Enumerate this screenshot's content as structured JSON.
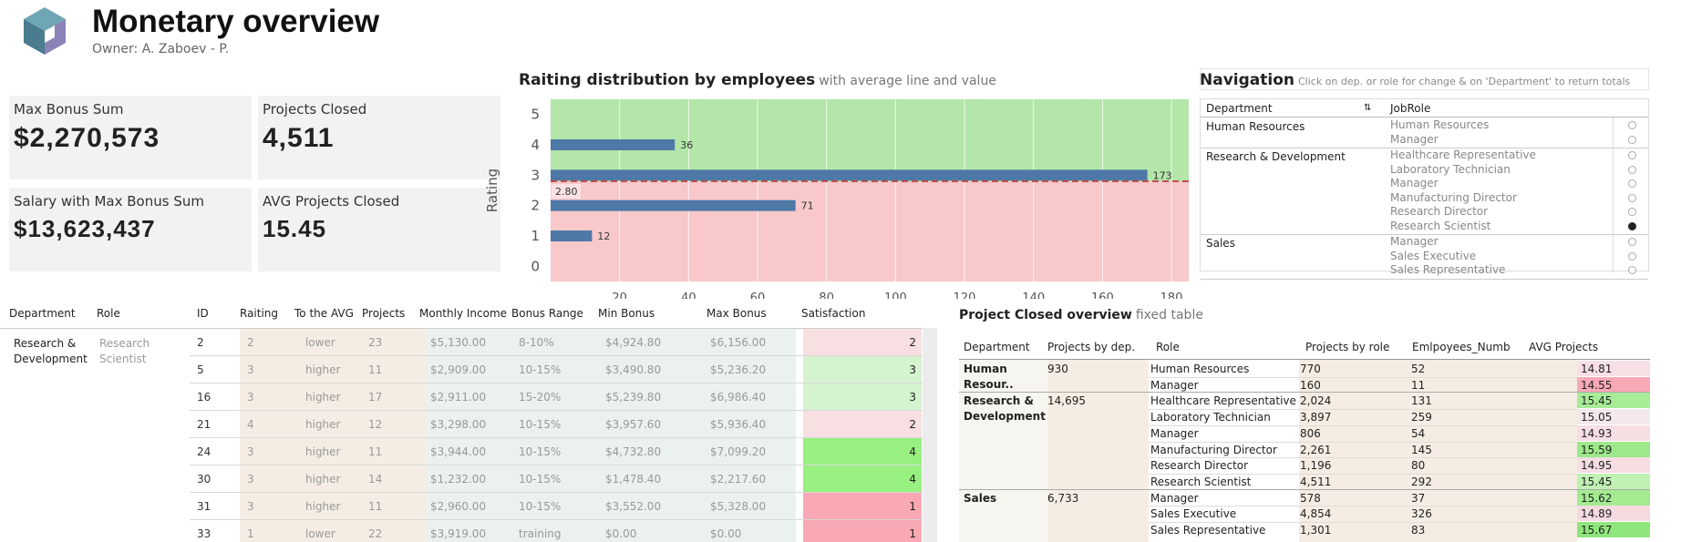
{
  "header": {
    "title": "Monetary overview",
    "owner": "Owner: A. Zaboev - P."
  },
  "kpis": [
    {
      "label": "Max Bonus Sum",
      "value": "$2,270,573"
    },
    {
      "label": "Projects Closed",
      "value": "4,511"
    },
    {
      "label": "Salary with Max Bonus Sum",
      "value": "$13,623,437"
    },
    {
      "label": "AVG Projects Closed",
      "value": "15.45"
    }
  ],
  "chart_title": "Raiting distribution by employees",
  "chart_subtitle": "with average line and value",
  "chart_data": {
    "type": "bar",
    "orientation": "horizontal",
    "categories": [
      "5",
      "4",
      "3",
      "2",
      "1",
      "0"
    ],
    "values": [
      null,
      36,
      173,
      71,
      12,
      null
    ],
    "ylabel": "Rating",
    "xlim": [
      0,
      185
    ],
    "xticks": [
      20,
      40,
      60,
      80,
      100,
      120,
      140,
      160,
      180
    ],
    "average_value": 2.8,
    "average_label": "2.80",
    "colors": {
      "bar": "#4e79a7",
      "above": "#b3e6a8",
      "below": "#f8c8cb",
      "avg_line": "#c0504d"
    },
    "grid": true
  },
  "navigation": {
    "title": "Navigation",
    "hint": "Click on dep. or role for change & on 'Department' to return totals",
    "col_department": "Department",
    "col_jobrole": "JobRole",
    "sort_icon": "az-sort-icon",
    "groups": [
      {
        "department": "Human Resources",
        "roles": [
          {
            "name": "Human Resources",
            "selected": false
          },
          {
            "name": "Manager",
            "selected": false
          }
        ]
      },
      {
        "department": "Research & Development",
        "roles": [
          {
            "name": "Healthcare Representative",
            "selected": false
          },
          {
            "name": "Laboratory Technician",
            "selected": false
          },
          {
            "name": "Manager",
            "selected": false
          },
          {
            "name": "Manufacturing Director",
            "selected": false
          },
          {
            "name": "Research Director",
            "selected": false
          },
          {
            "name": "Research Scientist",
            "selected": true
          }
        ]
      },
      {
        "department": "Sales",
        "roles": [
          {
            "name": "Manager",
            "selected": false
          },
          {
            "name": "Sales Executive",
            "selected": false
          },
          {
            "name": "Sales Representative",
            "selected": false
          }
        ]
      }
    ]
  },
  "employee_table": {
    "headers": [
      "Department",
      "Role",
      "ID",
      "Raiting",
      "To the AVG",
      "Projects",
      "Monthly Income",
      "Bonus Range",
      "Min Bonus",
      "Max Bonus",
      "Satisfaction"
    ],
    "department": "Research & Development",
    "role": "Research Scientist",
    "rows": [
      {
        "id": "2",
        "rating": "2",
        "to_avg": "lower",
        "projects": "23",
        "income": "$5,130.00",
        "bonus_range": "8-10%",
        "min_bonus": "$4,924.80",
        "max_bonus": "$6,156.00",
        "satisfaction": "2",
        "sat_color": "#f7dfe2"
      },
      {
        "id": "5",
        "rating": "3",
        "to_avg": "higher",
        "projects": "11",
        "income": "$2,909.00",
        "bonus_range": "10-15%",
        "min_bonus": "$3,490.80",
        "max_bonus": "$5,236.20",
        "satisfaction": "3",
        "sat_color": "#d6f3cf"
      },
      {
        "id": "16",
        "rating": "3",
        "to_avg": "higher",
        "projects": "17",
        "income": "$2,911.00",
        "bonus_range": "15-20%",
        "min_bonus": "$5,239.80",
        "max_bonus": "$6,986.40",
        "satisfaction": "3",
        "sat_color": "#d6f3cf"
      },
      {
        "id": "21",
        "rating": "4",
        "to_avg": "higher",
        "projects": "12",
        "income": "$3,298.00",
        "bonus_range": "10-15%",
        "min_bonus": "$3,957.60",
        "max_bonus": "$5,936.40",
        "satisfaction": "2",
        "sat_color": "#f7dfe2"
      },
      {
        "id": "24",
        "rating": "3",
        "to_avg": "higher",
        "projects": "11",
        "income": "$3,944.00",
        "bonus_range": "10-15%",
        "min_bonus": "$4,732.80",
        "max_bonus": "$7,099.20",
        "satisfaction": "4",
        "sat_color": "#97f07f"
      },
      {
        "id": "30",
        "rating": "3",
        "to_avg": "higher",
        "projects": "14",
        "income": "$1,232.00",
        "bonus_range": "10-15%",
        "min_bonus": "$1,478.40",
        "max_bonus": "$2,217.60",
        "satisfaction": "4",
        "sat_color": "#97f07f"
      },
      {
        "id": "31",
        "rating": "3",
        "to_avg": "higher",
        "projects": "11",
        "income": "$2,960.00",
        "bonus_range": "10-15%",
        "min_bonus": "$3,552.00",
        "max_bonus": "$5,328.00",
        "satisfaction": "1",
        "sat_color": "#f9a8b4"
      },
      {
        "id": "33",
        "rating": "1",
        "to_avg": "lower",
        "projects": "22",
        "income": "$3,919.00",
        "bonus_range": "training",
        "min_bonus": "$0.00",
        "max_bonus": "$0.00",
        "satisfaction": "1",
        "sat_color": "#f9a8b4"
      }
    ]
  },
  "project_overview": {
    "title": "Project Closed overview",
    "subtitle": "fixed table",
    "headers": [
      "Department",
      "Projects by dep.",
      "Role",
      "Projects by role",
      "Emlpoyees_Numb",
      "AVG Projects"
    ],
    "groups": [
      {
        "department": "Human Resour..",
        "projects": "930",
        "rows": [
          {
            "role": "Human Resources",
            "projects": "770",
            "employees": "52",
            "avg": "14.81",
            "color": "#f7e0e4"
          },
          {
            "role": "Manager",
            "projects": "160",
            "employees": "11",
            "avg": "14.55",
            "color": "#f9a8b6"
          }
        ]
      },
      {
        "department": "Research & Development",
        "projects": "14,695",
        "rows": [
          {
            "role": "Healthcare Representative",
            "projects": "2,024",
            "employees": "131",
            "avg": "15.45",
            "color": "#a8ec98"
          },
          {
            "role": "Laboratory Technician",
            "projects": "3,897",
            "employees": "259",
            "avg": "15.05",
            "color": "#f4e8eb"
          },
          {
            "role": "Manager",
            "projects": "806",
            "employees": "54",
            "avg": "14.93",
            "color": "#f6dfe3"
          },
          {
            "role": "Manufacturing Director",
            "projects": "2,261",
            "employees": "145",
            "avg": "15.59",
            "color": "#9ce88a"
          },
          {
            "role": "Research Director",
            "projects": "1,196",
            "employees": "80",
            "avg": "14.95",
            "color": "#f6dde2"
          },
          {
            "role": "Research Scientist",
            "projects": "4,511",
            "employees": "292",
            "avg": "15.45",
            "color": "#c0f0b2"
          }
        ]
      },
      {
        "department": "Sales",
        "projects": "6,733",
        "rows": [
          {
            "role": "Manager",
            "projects": "578",
            "employees": "37",
            "avg": "15.62",
            "color": "#a3ea91"
          },
          {
            "role": "Sales Executive",
            "projects": "4,854",
            "employees": "326",
            "avg": "14.89",
            "color": "#f5dbe0"
          },
          {
            "role": "Sales Representative",
            "projects": "1,301",
            "employees": "83",
            "avg": "15.67",
            "color": "#8fe67c"
          }
        ]
      }
    ]
  }
}
